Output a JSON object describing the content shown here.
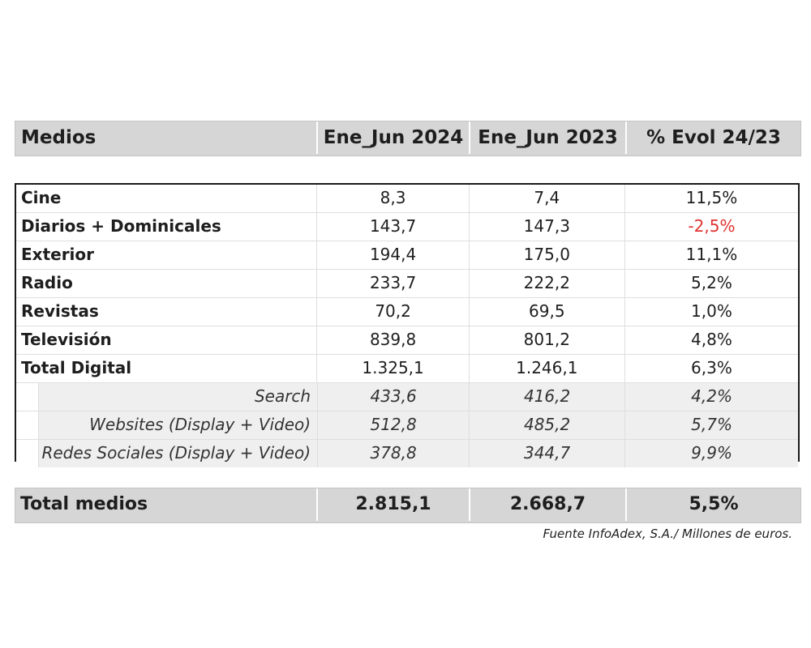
{
  "header": {
    "col0": "Medios",
    "col1": "Ene_Jun 2024",
    "col2": "Ene_Jun 2023",
    "col3": "% Evol 24/23"
  },
  "rows": [
    {
      "label": "Cine",
      "v2024": "8,3",
      "v2023": "7,4",
      "evol": "11,5%"
    },
    {
      "label": "Diarios + Dominicales",
      "v2024": "143,7",
      "v2023": "147,3",
      "evol": "-2,5%"
    },
    {
      "label": "Exterior",
      "v2024": "194,4",
      "v2023": "175,0",
      "evol": "11,1%"
    },
    {
      "label": "Radio",
      "v2024": "233,7",
      "v2023": "222,2",
      "evol": "5,2%"
    },
    {
      "label": "Revistas",
      "v2024": "70,2",
      "v2023": "69,5",
      "evol": "1,0%"
    },
    {
      "label": "Televisión",
      "v2024": "839,8",
      "v2023": "801,2",
      "evol": "4,8%"
    },
    {
      "label": "Total Digital",
      "v2024": "1.325,1",
      "v2023": "1.246,1",
      "evol": "6,3%"
    }
  ],
  "subrows": [
    {
      "label": "Search",
      "v2024": "433,6",
      "v2023": "416,2",
      "evol": "4,2%"
    },
    {
      "label": "Websites (Display + Video)",
      "v2024": "512,8",
      "v2023": "485,2",
      "evol": "5,7%"
    },
    {
      "label": "Redes Sociales (Display + Video)",
      "v2024": "378,8",
      "v2023": "344,7",
      "evol": "9,9%"
    }
  ],
  "total": {
    "label": "Total medios",
    "v2024": "2.815,1",
    "v2023": "2.668,7",
    "evol": "5,5%"
  },
  "source": "Fuente InfoAdex, S.A./ Millones de euros.",
  "colors": {
    "negative": "#e03131",
    "header_bg": "#d6d6d6"
  }
}
